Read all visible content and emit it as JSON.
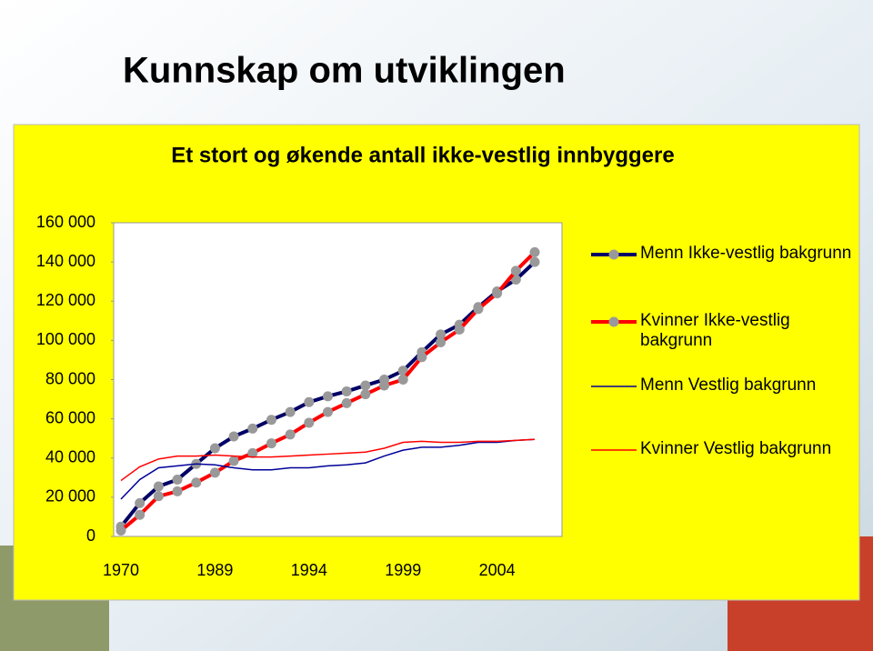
{
  "title": "Kunnskap om utviklingen",
  "chart_data": {
    "type": "line",
    "title": "Et stort og økende antall ikke-vestlig innbyggere",
    "categories": [
      "1970",
      null,
      null,
      null,
      null,
      "1989",
      null,
      null,
      null,
      null,
      "1994",
      null,
      null,
      null,
      null,
      "1999",
      null,
      null,
      null,
      null,
      "2004",
      null,
      null
    ],
    "series": [
      {
        "name": "Menn Ikke-vestlig bakgrunn",
        "color": "#000066",
        "marker": true,
        "marker_color": "#999999",
        "values": [
          5000,
          17000,
          25500,
          29000,
          37000,
          45000,
          51000,
          55000,
          59500,
          63500,
          68500,
          71500,
          74000,
          77000,
          80000,
          84500,
          94000,
          103000,
          108000,
          117000,
          125000,
          131000,
          140000
        ]
      },
      {
        "name": "Kvinner Ikke-vestlig bakgrunn",
        "color": "#ff0000",
        "marker": true,
        "marker_color": "#999999",
        "values": [
          3000,
          11000,
          20500,
          23000,
          27500,
          32500,
          38500,
          42500,
          47500,
          52000,
          58000,
          63500,
          68000,
          72500,
          77000,
          80000,
          91500,
          99000,
          105500,
          116000,
          124000,
          135500,
          145000
        ]
      },
      {
        "name": "Menn Vestlig bakgrunn",
        "color": "#000099",
        "marker": false,
        "values": [
          19000,
          29000,
          35000,
          36000,
          37000,
          36500,
          35000,
          34000,
          34000,
          35000,
          35000,
          36000,
          36500,
          37500,
          41000,
          44000,
          45500,
          45500,
          46500,
          48000,
          48000,
          49000,
          49500
        ]
      },
      {
        "name": "Kvinner Vestlig bakgrunn",
        "color": "#ff0000",
        "marker": false,
        "values": [
          28500,
          35500,
          39500,
          41000,
          41000,
          41500,
          41000,
          40500,
          40500,
          41000,
          41500,
          42000,
          42500,
          43000,
          45000,
          48000,
          48500,
          48000,
          48000,
          48500,
          48500,
          49000,
          49500
        ]
      }
    ],
    "ylim": [
      0,
      160000
    ],
    "yticks": [
      0,
      {
        "value": 20000,
        "label": "20 000"
      },
      {
        "value": 40000,
        "label": "40 000"
      },
      {
        "value": 60000,
        "label": "60 000"
      },
      {
        "value": 80000,
        "label": "80 000"
      },
      {
        "value": 100000,
        "label": "100 000"
      },
      {
        "value": 120000,
        "label": "120 000"
      },
      {
        "value": 140000,
        "label": "140 000"
      },
      {
        "value": 160000,
        "label": "160 000"
      }
    ],
    "legend": "right"
  }
}
